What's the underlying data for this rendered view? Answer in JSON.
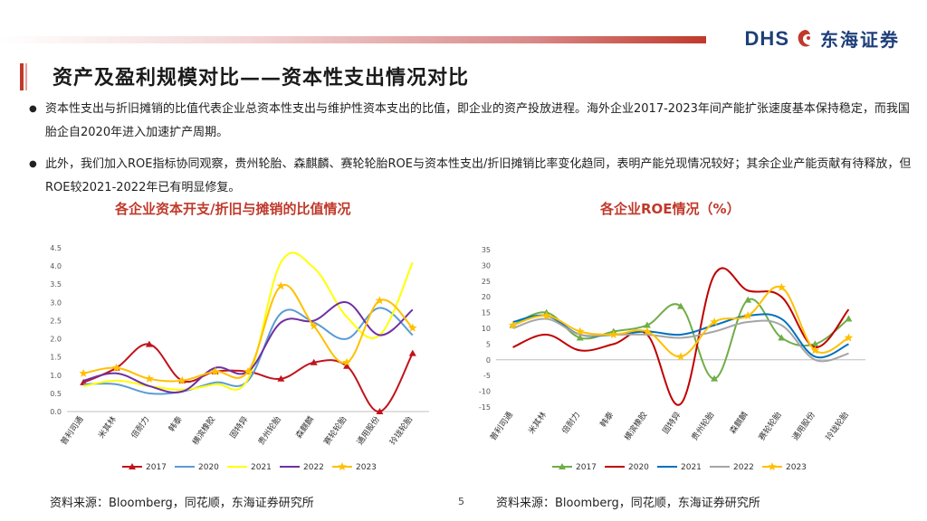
{
  "header": {
    "logo_text": "DHS",
    "logo_cn": "东海证券",
    "title": "资产及盈利规模对比——资本性支出情况对比"
  },
  "bullets": [
    "资本性支出与折旧摊销的比值代表企业总资本性支出与维护性资本支出的比值，即企业的资产投放进程。海外企业2017-2023年间产能扩张速度基本保持稳定，而我国胎企自2020年进入加速扩产周期。",
    "此外，我们加入ROE指标协同观察，贵州轮胎、森麒麟、赛轮轮胎ROE与资本性支出/折旧摊销比率变化趋同，表明产能兑现情况较好；其余企业产能贡献有待释放，但ROE较2021-2022年已有明显修复。"
  ],
  "footer": {
    "source_left": "资料来源：Bloomberg，同花顺，东海证券研究所",
    "source_right": "资料来源：Bloomberg，同花顺，东海证券研究所",
    "page": "5"
  },
  "colors": {
    "2017": "#c0141c",
    "2020": "#5b9bd5",
    "2021": "#ffff00",
    "2022": "#7030a0",
    "2023": "#ffc000",
    "roe2017": "#70ad47",
    "roe2020": "#c00000",
    "roe2021": "#0070c0",
    "roe2022": "#a5a5a5",
    "roe2023": "#ffc000"
  },
  "chart_data": [
    {
      "type": "line",
      "title": "各企业资本开支/折旧与摊销的比值情况",
      "categories": [
        "普利司通",
        "米其林",
        "倍耐力",
        "韩泰",
        "横滨橡胶",
        "固特异",
        "贵州轮胎",
        "森麒麟",
        "赛轮轮胎",
        "通用股份",
        "玲珑轮胎"
      ],
      "ylim": [
        0,
        4.5
      ],
      "yticks": [
        "0.0",
        "0.5",
        "1.0",
        "1.5",
        "2.0",
        "2.5",
        "3.0",
        "3.5",
        "4.0",
        "4.5"
      ],
      "series": [
        {
          "name": "2017",
          "values": [
            0.8,
            1.2,
            1.85,
            0.85,
            1.1,
            1.1,
            0.9,
            1.35,
            1.25,
            0.0,
            1.6
          ]
        },
        {
          "name": "2020",
          "values": [
            0.75,
            0.75,
            0.5,
            0.55,
            0.8,
            0.85,
            2.7,
            2.45,
            2.0,
            2.85,
            2.1
          ]
        },
        {
          "name": "2021",
          "values": [
            0.7,
            0.85,
            0.7,
            0.6,
            0.75,
            0.9,
            4.1,
            3.95,
            2.6,
            2.1,
            4.1
          ]
        },
        {
          "name": "2022",
          "values": [
            0.85,
            1.05,
            0.7,
            0.55,
            1.2,
            1.1,
            2.45,
            2.5,
            3.0,
            2.1,
            2.8
          ]
        },
        {
          "name": "2023",
          "values": [
            1.05,
            1.2,
            0.9,
            0.85,
            1.1,
            1.1,
            3.45,
            2.35,
            1.35,
            3.05,
            2.3
          ]
        }
      ]
    },
    {
      "type": "line",
      "title": "各企业ROE情况（%）",
      "categories": [
        "普利司通",
        "米其林",
        "倍耐力",
        "韩泰",
        "横滨橡胶",
        "固特异",
        "贵州轮胎",
        "森麒麟",
        "赛轮轮胎",
        "通用股份",
        "玲珑轮胎"
      ],
      "ylim": [
        -15,
        35
      ],
      "yticks": [
        "-15",
        "-10",
        "-5",
        "0",
        "5",
        "10",
        "15",
        "20",
        "25",
        "30",
        "35"
      ],
      "series": [
        {
          "name": "2017",
          "values": [
            11,
            15,
            7,
            9,
            11,
            17,
            -6,
            19,
            7,
            5,
            13
          ]
        },
        {
          "name": "2020",
          "values": [
            4,
            8,
            3,
            5,
            8,
            -14,
            27,
            22,
            20,
            4,
            16
          ]
        },
        {
          "name": "2021",
          "values": [
            12,
            14,
            8,
            8,
            9,
            8,
            11,
            14,
            13,
            1,
            5
          ]
        },
        {
          "name": "2022",
          "values": [
            10,
            13,
            8,
            8,
            8,
            7,
            9,
            12,
            11,
            0,
            2
          ]
        },
        {
          "name": "2023",
          "values": [
            11,
            14,
            9,
            8,
            9,
            1,
            12,
            14,
            23,
            3,
            7
          ]
        }
      ]
    }
  ]
}
